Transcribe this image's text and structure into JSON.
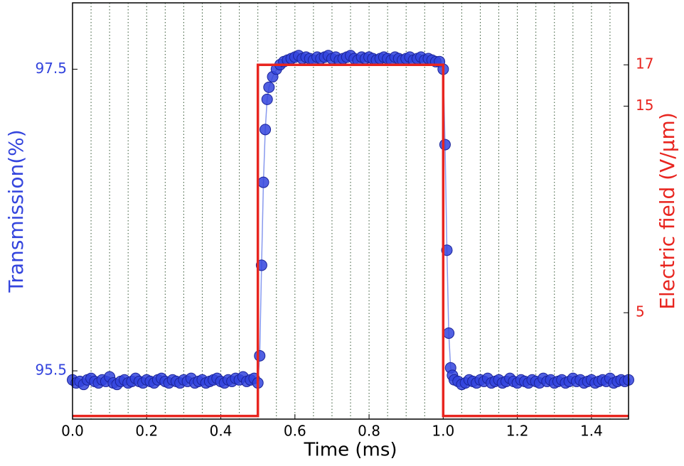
{
  "chart_data": {
    "type": "dual-axis-line",
    "x_label": "Time (ms)",
    "y_label": "Transmission(%)",
    "y2_label": "Electric field (V/μm)",
    "xlim": [
      0,
      1.5
    ],
    "xticks": [
      {
        "value": 0,
        "label": "0.0"
      },
      0.2,
      0.4,
      0.6,
      0.8,
      {
        "value": 1,
        "label": "1.0"
      },
      1.2,
      1.4
    ],
    "x_gridlines": [
      0.05,
      0.1,
      0.15,
      0.2,
      0.25,
      0.3,
      0.35,
      0.4,
      0.45,
      0.5,
      0.55,
      0.6,
      0.65,
      0.7,
      0.75,
      0.8,
      0.85,
      0.9,
      0.95,
      1,
      1.05,
      1.1,
      1.15,
      1.2,
      1.25,
      1.3,
      1.35,
      1.4,
      1.45
    ],
    "ylim": [
      95.18,
      97.94
    ],
    "yticks": [
      95.5,
      97.5
    ],
    "y2lim": [
      -0.15,
      20.0
    ],
    "y2ticks": [
      5,
      15,
      17
    ],
    "series": [
      {
        "name": "Transmission",
        "color": "#3344dd",
        "marker": true,
        "x": [
          0,
          0.01,
          0.02,
          0.03,
          0.04,
          0.05,
          0.06,
          0.07,
          0.08,
          0.09,
          0.1,
          0.11,
          0.12,
          0.13,
          0.14,
          0.15,
          0.16,
          0.17,
          0.18,
          0.19,
          0.2,
          0.21,
          0.22,
          0.23,
          0.24,
          0.25,
          0.26,
          0.27,
          0.28,
          0.29,
          0.3,
          0.31,
          0.32,
          0.33,
          0.34,
          0.35,
          0.36,
          0.37,
          0.38,
          0.39,
          0.4,
          0.41,
          0.42,
          0.43,
          0.44,
          0.45,
          0.46,
          0.47,
          0.48,
          0.49,
          0.5,
          0.505,
          0.51,
          0.515,
          0.52,
          0.525,
          0.53,
          0.54,
          0.55,
          0.56,
          0.57,
          0.58,
          0.59,
          0.6,
          0.61,
          0.62,
          0.63,
          0.64,
          0.65,
          0.66,
          0.67,
          0.68,
          0.69,
          0.7,
          0.71,
          0.72,
          0.73,
          0.74,
          0.75,
          0.76,
          0.77,
          0.78,
          0.79,
          0.8,
          0.81,
          0.82,
          0.83,
          0.84,
          0.85,
          0.86,
          0.87,
          0.88,
          0.89,
          0.9,
          0.91,
          0.92,
          0.93,
          0.94,
          0.95,
          0.96,
          0.97,
          0.98,
          0.99,
          1,
          1.005,
          1.01,
          1.015,
          1.02,
          1.025,
          1.03,
          1.04,
          1.05,
          1.06,
          1.07,
          1.08,
          1.09,
          1.1,
          1.11,
          1.12,
          1.13,
          1.14,
          1.15,
          1.16,
          1.17,
          1.18,
          1.19,
          1.2,
          1.21,
          1.22,
          1.23,
          1.24,
          1.25,
          1.26,
          1.27,
          1.28,
          1.29,
          1.3,
          1.31,
          1.32,
          1.33,
          1.34,
          1.35,
          1.36,
          1.37,
          1.38,
          1.39,
          1.4,
          1.41,
          1.42,
          1.43,
          1.44,
          1.45,
          1.46,
          1.47,
          1.48,
          1.49,
          1.5
        ],
        "values": [
          95.44,
          95.42,
          95.43,
          95.41,
          95.44,
          95.45,
          95.43,
          95.42,
          95.44,
          95.43,
          95.46,
          95.42,
          95.41,
          95.43,
          95.44,
          95.42,
          95.43,
          95.45,
          95.43,
          95.42,
          95.44,
          95.43,
          95.42,
          95.44,
          95.45,
          95.43,
          95.42,
          95.44,
          95.43,
          95.42,
          95.44,
          95.43,
          95.45,
          95.42,
          95.43,
          95.44,
          95.42,
          95.43,
          95.44,
          95.45,
          95.43,
          95.42,
          95.44,
          95.43,
          95.45,
          95.44,
          95.46,
          95.43,
          95.44,
          95.45,
          95.42,
          95.6,
          96.2,
          96.75,
          97.1,
          97.3,
          97.38,
          97.45,
          97.5,
          97.53,
          97.55,
          97.56,
          97.57,
          97.58,
          97.59,
          97.57,
          97.58,
          97.57,
          97.56,
          97.58,
          97.57,
          97.58,
          97.59,
          97.57,
          97.58,
          97.56,
          97.57,
          97.58,
          97.59,
          97.57,
          97.56,
          97.58,
          97.57,
          97.58,
          97.57,
          97.56,
          97.57,
          97.58,
          97.57,
          97.56,
          97.58,
          97.57,
          97.56,
          97.57,
          97.58,
          97.56,
          97.57,
          97.58,
          97.56,
          97.57,
          97.56,
          97.55,
          97.55,
          97.5,
          97.0,
          96.3,
          95.75,
          95.52,
          95.47,
          95.44,
          95.43,
          95.41,
          95.42,
          95.44,
          95.43,
          95.42,
          95.44,
          95.43,
          95.45,
          95.42,
          95.43,
          95.44,
          95.42,
          95.43,
          95.45,
          95.43,
          95.42,
          95.44,
          95.43,
          95.42,
          95.44,
          95.43,
          95.42,
          95.45,
          95.43,
          95.44,
          95.42,
          95.43,
          95.44,
          95.42,
          95.43,
          95.45,
          95.43,
          95.44,
          95.42,
          95.43,
          95.44,
          95.42,
          95.43,
          95.44,
          95.43,
          95.45,
          95.42,
          95.43,
          95.44,
          95.43,
          95.44
        ]
      },
      {
        "name": "Electric field",
        "color": "#e8251f",
        "axis": "y2",
        "marker": false,
        "x": [
          0,
          0.5,
          0.5,
          1,
          1,
          1.5
        ],
        "values": [
          0,
          0,
          17,
          17,
          0,
          0
        ]
      }
    ]
  }
}
